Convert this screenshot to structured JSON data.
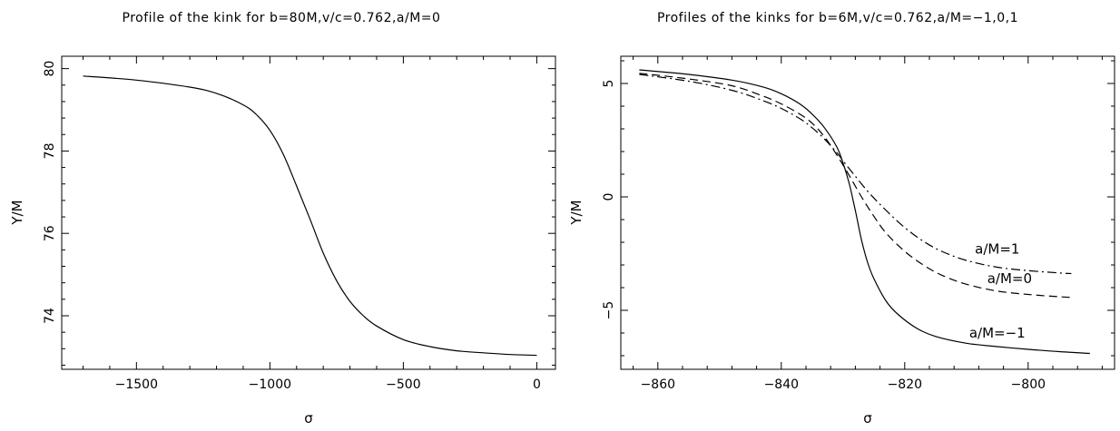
{
  "chart_data": [
    {
      "type": "line",
      "title": "Profile of the kink for b=80M,v/c=0.762,a/M=0",
      "xlabel": "σ",
      "ylabel": "Y/M",
      "xlim": [
        -1780,
        70
      ],
      "ylim": [
        72.7,
        80.3
      ],
      "x_ticks": [
        -1500,
        -1000,
        -500,
        0
      ],
      "x_tick_labels": [
        "−1500",
        "−1000",
        "−500",
        "0"
      ],
      "y_ticks": [
        74,
        76,
        78,
        80
      ],
      "y_tick_labels": [
        "74",
        "76",
        "78",
        "80"
      ],
      "grid": false,
      "series": [
        {
          "style": "solid",
          "x": [
            -1700,
            -1500,
            -1300,
            -1200,
            -1100,
            -1050,
            -1000,
            -950,
            -900,
            -850,
            -800,
            -750,
            -700,
            -650,
            -600,
            -500,
            -400,
            -300,
            -200,
            -100,
            0
          ],
          "y": [
            79.82,
            79.72,
            79.55,
            79.4,
            79.12,
            78.88,
            78.5,
            77.92,
            77.15,
            76.35,
            75.52,
            74.85,
            74.35,
            74.0,
            73.75,
            73.42,
            73.25,
            73.15,
            73.1,
            73.06,
            73.04
          ]
        }
      ]
    },
    {
      "type": "line",
      "title": "Profiles of the kinks for b=6M,v/c=0.762,a/M=−1,0,1",
      "xlabel": "σ",
      "ylabel": "Y/M",
      "xlim": [
        -866,
        -786
      ],
      "ylim": [
        -7.6,
        6.2
      ],
      "x_ticks": [
        -860,
        -840,
        -820,
        -800
      ],
      "x_tick_labels": [
        "−860",
        "−840",
        "−820",
        "−800"
      ],
      "y_ticks": [
        -5,
        0,
        5
      ],
      "y_tick_labels": [
        "−5",
        "0",
        "5"
      ],
      "grid": false,
      "series": [
        {
          "name": "a/M=−1",
          "style": "solid",
          "x": [
            -863,
            -855,
            -848,
            -843,
            -840,
            -837,
            -835,
            -833,
            -831,
            -830,
            -829,
            -828,
            -827,
            -826,
            -825,
            -823,
            -821,
            -818,
            -815,
            -810,
            -805,
            -800,
            -795,
            -790
          ],
          "y": [
            5.6,
            5.4,
            5.15,
            4.85,
            4.55,
            4.1,
            3.65,
            3.05,
            2.2,
            1.5,
            0.6,
            -0.6,
            -1.9,
            -2.9,
            -3.6,
            -4.6,
            -5.2,
            -5.8,
            -6.15,
            -6.45,
            -6.6,
            -6.72,
            -6.82,
            -6.9
          ]
        },
        {
          "name": "a/M=0",
          "style": "dashed",
          "x": [
            -863,
            -855,
            -848,
            -843,
            -840,
            -837,
            -835,
            -833,
            -831,
            -829,
            -827,
            -825,
            -823,
            -820,
            -817,
            -814,
            -810,
            -805,
            -800,
            -795,
            -793
          ],
          "y": [
            5.45,
            5.2,
            4.9,
            4.45,
            4.1,
            3.65,
            3.25,
            2.65,
            1.85,
            0.95,
            0.0,
            -0.85,
            -1.6,
            -2.4,
            -3.0,
            -3.45,
            -3.85,
            -4.15,
            -4.3,
            -4.4,
            -4.43
          ]
        },
        {
          "name": "a/M=1",
          "style": "dashdot",
          "x": [
            -863,
            -855,
            -848,
            -843,
            -840,
            -837,
            -835,
            -833,
            -831,
            -829,
            -826,
            -823,
            -820,
            -817,
            -814,
            -810,
            -805,
            -800,
            -795,
            -793
          ],
          "y": [
            5.4,
            5.1,
            4.7,
            4.25,
            3.9,
            3.45,
            3.05,
            2.55,
            1.95,
            1.25,
            0.25,
            -0.6,
            -1.35,
            -1.95,
            -2.4,
            -2.8,
            -3.1,
            -3.25,
            -3.35,
            -3.38
          ]
        }
      ],
      "annotations": [
        {
          "text": "a/M=1",
          "x": -805,
          "y": -2.5
        },
        {
          "text": "a/M=0",
          "x": -803,
          "y": -3.8
        },
        {
          "text": "a/M=−1",
          "x": -805,
          "y": -6.2
        }
      ]
    }
  ]
}
